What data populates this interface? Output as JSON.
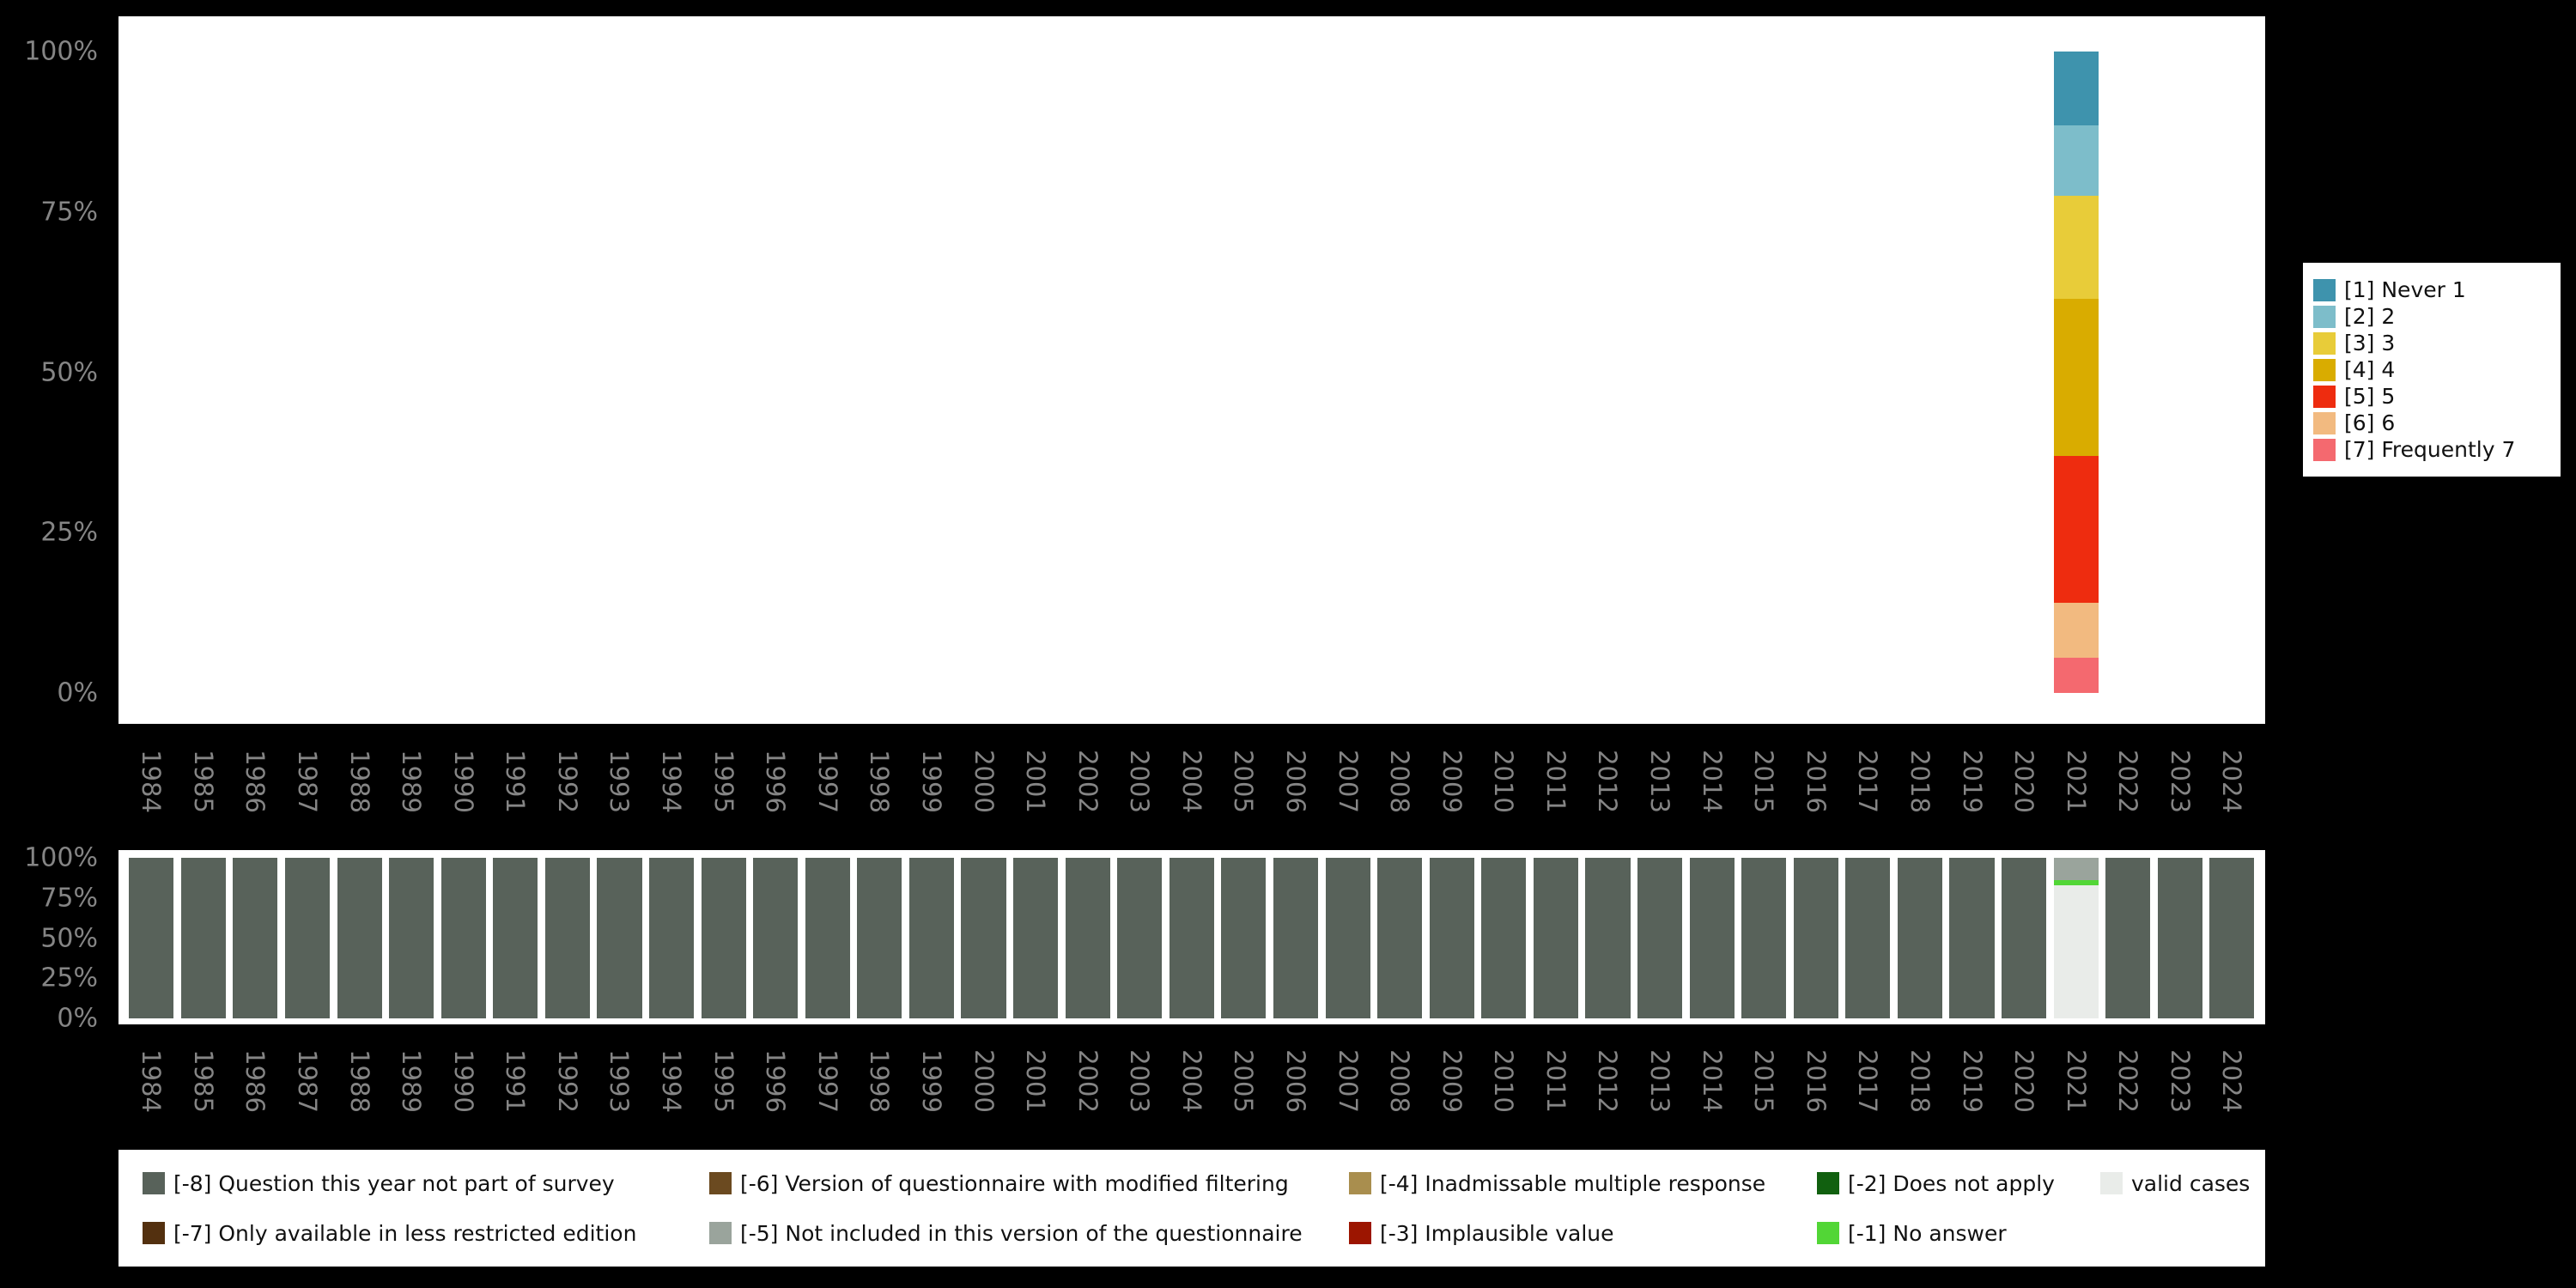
{
  "background": "#000000",
  "axis_text_color": "#858585",
  "chart_data": [
    {
      "type": "bar",
      "stacked": true,
      "title": "",
      "xlabel": "",
      "ylabel": "",
      "ylim": [
        0,
        100
      ],
      "grid": false,
      "legend_position": "right",
      "y_ticks": [
        "100%",
        "75%",
        "50%",
        "25%",
        "0%"
      ],
      "categories": [
        "1984",
        "1985",
        "1986",
        "1987",
        "1988",
        "1989",
        "1990",
        "1991",
        "1992",
        "1993",
        "1994",
        "1995",
        "1996",
        "1997",
        "1998",
        "1999",
        "2000",
        "2001",
        "2002",
        "2003",
        "2004",
        "2005",
        "2006",
        "2007",
        "2008",
        "2009",
        "2010",
        "2011",
        "2012",
        "2013",
        "2014",
        "2015",
        "2016",
        "2017",
        "2018",
        "2019",
        "2020",
        "2021",
        "2022",
        "2023",
        "2024"
      ],
      "series": [
        {
          "name": "[1] Never 1",
          "color": "#3e93ad",
          "data": {
            "2021": 11.5
          }
        },
        {
          "name": "[2] 2",
          "color": "#7dbdca",
          "data": {
            "2021": 11
          }
        },
        {
          "name": "[3] 3",
          "color": "#e8cc39",
          "data": {
            "2021": 16
          }
        },
        {
          "name": "[4] 4",
          "color": "#d9ac00",
          "data": {
            "2021": 24.5
          }
        },
        {
          "name": "[5] 5",
          "color": "#ee2c0f",
          "data": {
            "2021": 23
          }
        },
        {
          "name": "[6] 6",
          "color": "#f2ba80",
          "data": {
            "2021": 8.5
          }
        },
        {
          "name": "[7] Frequently 7",
          "color": "#f4696f",
          "data": {
            "2021": 5.5
          }
        }
      ]
    },
    {
      "type": "bar",
      "stacked": true,
      "title": "",
      "xlabel": "",
      "ylabel": "",
      "ylim": [
        0,
        100
      ],
      "grid": false,
      "legend_position": "bottom",
      "y_ticks": [
        "100%",
        "75%",
        "50%",
        "25%",
        "0%"
      ],
      "categories": [
        "1984",
        "1985",
        "1986",
        "1987",
        "1988",
        "1989",
        "1990",
        "1991",
        "1992",
        "1993",
        "1994",
        "1995",
        "1996",
        "1997",
        "1998",
        "1999",
        "2000",
        "2001",
        "2002",
        "2003",
        "2004",
        "2005",
        "2006",
        "2007",
        "2008",
        "2009",
        "2010",
        "2011",
        "2012",
        "2013",
        "2014",
        "2015",
        "2016",
        "2017",
        "2018",
        "2019",
        "2020",
        "2021",
        "2022",
        "2023",
        "2024"
      ],
      "series": [
        {
          "name": "[-8] Question this year not part of survey",
          "color": "#58625a",
          "default": 100,
          "data": {
            "2021": 0
          }
        },
        {
          "name": "[-5] Not included in this version of the questionnaire",
          "color": "#9aa49c",
          "data": {
            "2021": 14
          }
        },
        {
          "name": "[-1] No answer",
          "color": "#52d636",
          "data": {
            "2021": 3
          }
        },
        {
          "name": "valid cases",
          "color": "#e9ece9",
          "data": {
            "2021": 83
          }
        }
      ]
    }
  ],
  "missing_legend": {
    "items": [
      {
        "label": "[-8] Question this year not part of survey",
        "color": "#58625a"
      },
      {
        "label": "[-6] Version of questionnaire with modified filtering",
        "color": "#6b4a20"
      },
      {
        "label": "[-4] Inadmissable multiple response",
        "color": "#a98e4e"
      },
      {
        "label": "[-2] Does not apply",
        "color": "#11600f"
      },
      {
        "label": "valid cases",
        "color": "#e9ece9"
      },
      {
        "label": "[-7] Only available in less restricted edition",
        "color": "#53300f"
      },
      {
        "label": "[-5] Not included in this version of the questionnaire",
        "color": "#9aa49c"
      },
      {
        "label": "[-3] Implausible value",
        "color": "#9c1500"
      },
      {
        "label": "[-1] No answer",
        "color": "#52d636"
      }
    ]
  }
}
